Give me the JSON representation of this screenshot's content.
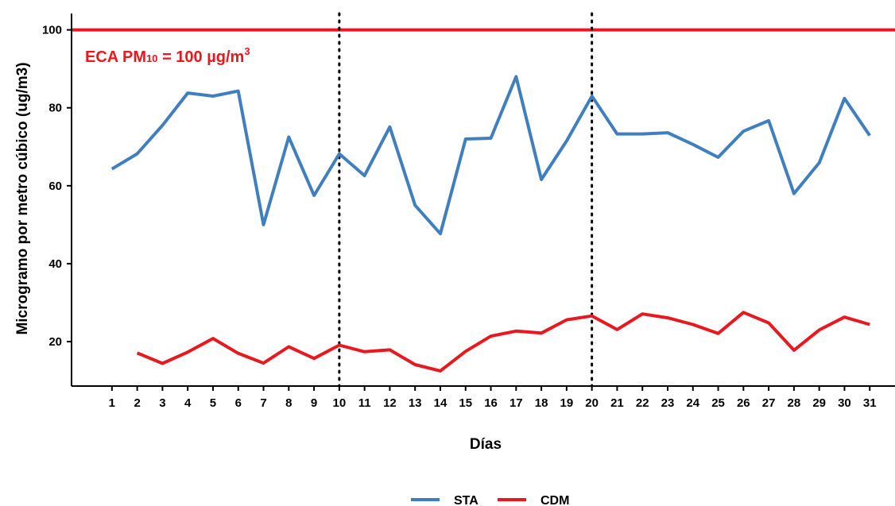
{
  "chart_data": {
    "type": "line",
    "title": "",
    "xlabel": "Días",
    "ylabel": "Microgramo por metro cúbico (ug/m3)",
    "x": [
      1,
      2,
      3,
      4,
      5,
      6,
      7,
      8,
      9,
      10,
      11,
      12,
      13,
      14,
      15,
      16,
      17,
      18,
      19,
      20,
      21,
      22,
      23,
      24,
      25,
      26,
      27,
      28,
      29,
      30,
      31
    ],
    "xlim": [
      -0.6,
      32
    ],
    "ylim": [
      8.6,
      104.2
    ],
    "yticks": [
      20,
      40,
      60,
      80,
      100
    ],
    "grid": false,
    "legend_position": "bottom",
    "series": [
      {
        "name": "STA",
        "color": "#3f7fbf",
        "values": [
          64.3,
          68.2,
          75.5,
          83.8,
          83.0,
          84.3,
          50.0,
          72.5,
          57.5,
          68.2,
          62.6,
          75.1,
          55.0,
          47.7,
          72.0,
          72.2,
          88.0,
          61.6,
          71.5,
          83.0,
          73.3,
          73.3,
          73.6,
          70.6,
          67.3,
          74.0,
          76.7,
          58.0,
          65.9,
          82.4,
          72.9
        ]
      },
      {
        "name": "CDM",
        "color": "#e8191e",
        "values": [
          null,
          17.1,
          14.4,
          17.3,
          20.8,
          17.0,
          14.5,
          18.7,
          15.7,
          19.1,
          17.4,
          17.9,
          14.1,
          12.5,
          17.5,
          21.4,
          22.7,
          22.2,
          25.6,
          26.6,
          23.1,
          27.1,
          26.1,
          24.4,
          22.1,
          27.5,
          24.8,
          17.8,
          23.0,
          26.3,
          24.4
        ]
      }
    ],
    "reference_lines": [
      {
        "axis": "y",
        "value": 100,
        "color": "#e8191e",
        "style": "solid"
      },
      {
        "axis": "x",
        "value": 10,
        "color": "#000000",
        "style": "dotted"
      },
      {
        "axis": "x",
        "value": 20,
        "color": "#000000",
        "style": "dotted"
      }
    ],
    "annotations": [
      {
        "text_main": "ECA PM",
        "subscript": "10",
        "text_rest": " = 100 µg/m",
        "superscript": "3",
        "color": "#e8191e"
      }
    ]
  }
}
